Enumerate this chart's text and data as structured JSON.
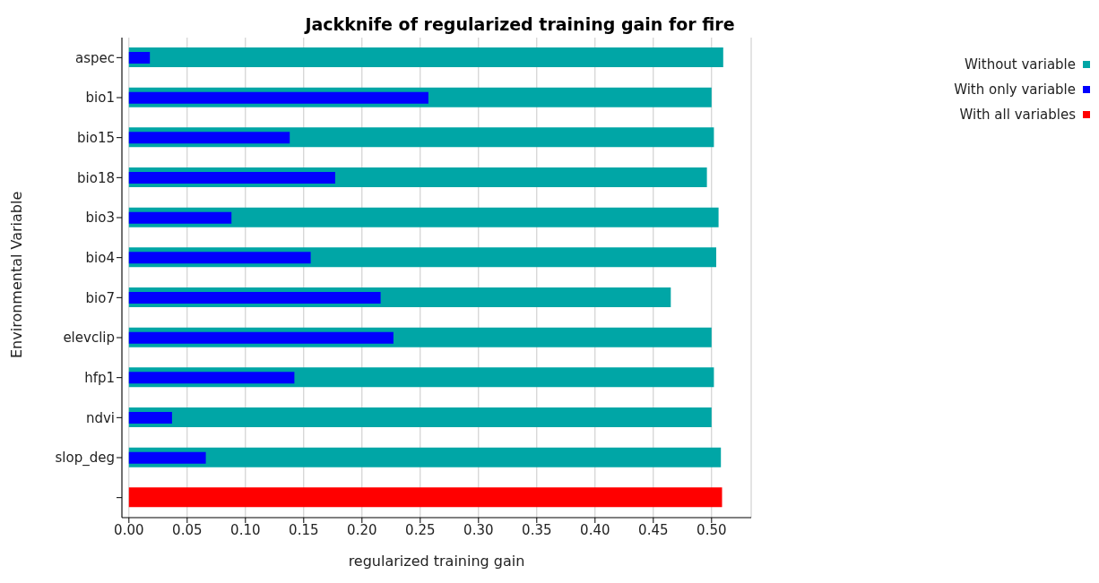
{
  "chart_data": {
    "type": "bar",
    "orientation": "horizontal",
    "title": "Jackknife of regularized training gain for fire",
    "xlabel": "regularized training gain",
    "ylabel": "Environmental Variable",
    "categories": [
      "aspec",
      "bio1",
      "bio15",
      "bio18",
      "bio3",
      "bio4",
      "bio7",
      "elevclip",
      "hfp1",
      "ndvi",
      "slop_deg",
      null
    ],
    "series": [
      {
        "name": "Without variable",
        "color": "#00a6a6",
        "values": [
          0.51,
          0.5,
          0.502,
          0.496,
          0.506,
          0.504,
          0.465,
          0.5,
          0.502,
          0.5,
          0.508,
          null
        ]
      },
      {
        "name": "With only variable",
        "color": "#0000ff",
        "values": [
          0.018,
          0.257,
          0.138,
          0.177,
          0.088,
          0.156,
          0.216,
          0.227,
          0.142,
          0.037,
          0.066,
          null
        ]
      },
      {
        "name": "With all variables",
        "color": "#ff0000",
        "values": [
          null,
          null,
          null,
          null,
          null,
          null,
          null,
          null,
          null,
          null,
          null,
          0.509
        ]
      }
    ],
    "xlim": [
      -0.006,
      0.534
    ],
    "xticks": [
      {
        "value": 0,
        "label": "0.00"
      },
      0.05,
      {
        "value": 0.1,
        "label": "0.10"
      },
      0.15,
      {
        "value": 0.2,
        "label": "0.20"
      },
      0.25,
      {
        "value": 0.3,
        "label": "0.30"
      },
      0.35,
      {
        "value": 0.4,
        "label": "0.40"
      },
      0.45,
      {
        "value": 0.5,
        "label": "0.50"
      }
    ],
    "grid": "x",
    "legend": "top right"
  }
}
